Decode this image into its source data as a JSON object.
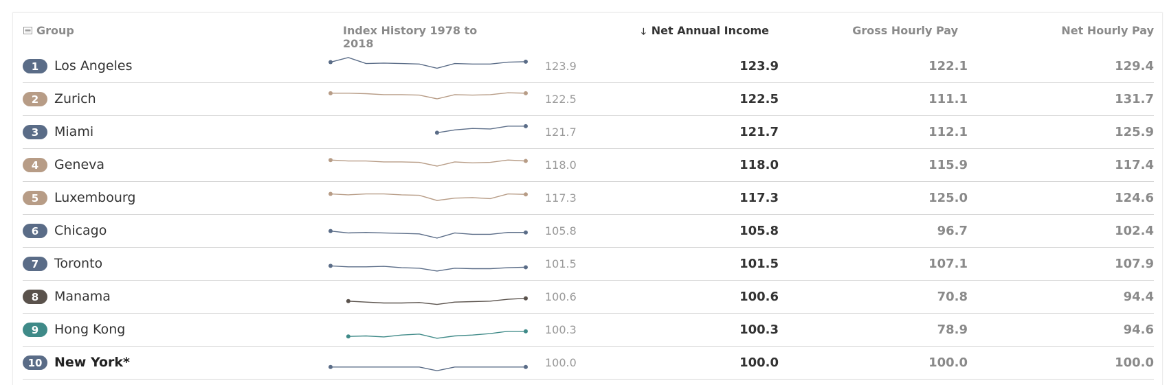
{
  "header": {
    "group": "Group",
    "history": "Index History 1978 to 2018",
    "net_annual": "Net Annual Income",
    "gross_hourly": "Gross Hourly Pay",
    "net_hourly": "Net Hourly Pay",
    "sort_icon": "arrow-down-icon",
    "group_icon": "list-icon"
  },
  "colors": {
    "north_america": "#5a6c87",
    "europe": "#b79c86",
    "middle_east": "#5a524c",
    "asia": "#3f8a88"
  },
  "chart_data": {
    "type": "table",
    "columns": [
      "Group",
      "Index History 1978 to 2018",
      "Net Annual Income",
      "Gross Hourly Pay",
      "Net Hourly Pay"
    ],
    "rows": [
      {
        "rank": "1",
        "city": "Los Angeles",
        "color": "#5a6c87",
        "index": "123.9",
        "net_annual": "123.9",
        "gross_hourly": "122.1",
        "net_hourly": "129.4",
        "bold": false,
        "history": [
          118,
          128,
          115,
          116,
          115,
          114,
          105,
          115,
          114,
          114,
          118,
          119
        ]
      },
      {
        "rank": "2",
        "city": "Zurich",
        "color": "#b79c86",
        "index": "122.5",
        "net_annual": "122.5",
        "gross_hourly": "111.1",
        "net_hourly": "131.7",
        "bold": false,
        "history": [
          122,
          122,
          121,
          119,
          119,
          118,
          110,
          119,
          118,
          119,
          123,
          122
        ]
      },
      {
        "rank": "3",
        "city": "Miami",
        "color": "#5a6c87",
        "index": "121.7",
        "net_annual": "121.7",
        "gross_hourly": "112.1",
        "net_hourly": "125.9",
        "bold": false,
        "history": [
          null,
          null,
          null,
          null,
          null,
          null,
          108,
          114,
          117,
          116,
          122,
          122
        ]
      },
      {
        "rank": "4",
        "city": "Geneva",
        "color": "#b79c86",
        "index": "118.0",
        "net_annual": "118.0",
        "gross_hourly": "115.9",
        "net_hourly": "117.4",
        "bold": false,
        "history": [
          120,
          118,
          118,
          116,
          116,
          115,
          107,
          116,
          114,
          115,
          120,
          118
        ]
      },
      {
        "rank": "5",
        "city": "Luxembourg",
        "color": "#b79c86",
        "index": "117.3",
        "net_annual": "117.3",
        "gross_hourly": "125.0",
        "net_hourly": "124.6",
        "bold": false,
        "history": [
          118,
          116,
          118,
          118,
          116,
          115,
          104,
          109,
          110,
          108,
          118,
          117
        ]
      },
      {
        "rank": "6",
        "city": "Chicago",
        "color": "#5a6c87",
        "index": "105.8",
        "net_annual": "105.8",
        "gross_hourly": "96.7",
        "net_hourly": "102.4",
        "bold": false,
        "history": [
          109,
          105,
          106,
          105,
          104,
          103,
          94,
          105,
          102,
          102,
          106,
          106
        ]
      },
      {
        "rank": "7",
        "city": "Toronto",
        "color": "#5a6c87",
        "index": "101.5",
        "net_annual": "101.5",
        "gross_hourly": "107.1",
        "net_hourly": "107.9",
        "bold": false,
        "history": [
          105,
          103,
          103,
          104,
          101,
          100,
          94,
          100,
          99,
          99,
          101,
          102
        ]
      },
      {
        "rank": "8",
        "city": "Manama",
        "color": "#5a524c",
        "index": "100.6",
        "net_annual": "100.6",
        "gross_hourly": "70.8",
        "net_hourly": "94.4",
        "bold": false,
        "history": [
          null,
          100,
          98,
          96,
          96,
          97,
          93,
          98,
          99,
          100,
          104,
          106
        ]
      },
      {
        "rank": "9",
        "city": "Hong Kong",
        "color": "#3f8a88",
        "index": "100.3",
        "net_annual": "100.3",
        "gross_hourly": "78.9",
        "net_hourly": "94.6",
        "bold": false,
        "history": [
          null,
          95,
          96,
          94,
          98,
          100,
          91,
          96,
          98,
          101,
          106,
          106
        ]
      },
      {
        "rank": "10",
        "city": "New York*",
        "color": "#5a6c87",
        "index": "100.0",
        "net_annual": "100.0",
        "gross_hourly": "100.0",
        "net_hourly": "100.0",
        "bold": true,
        "history": [
          100,
          100,
          100,
          100,
          100,
          100,
          92,
          100,
          100,
          100,
          100,
          100
        ]
      }
    ]
  }
}
